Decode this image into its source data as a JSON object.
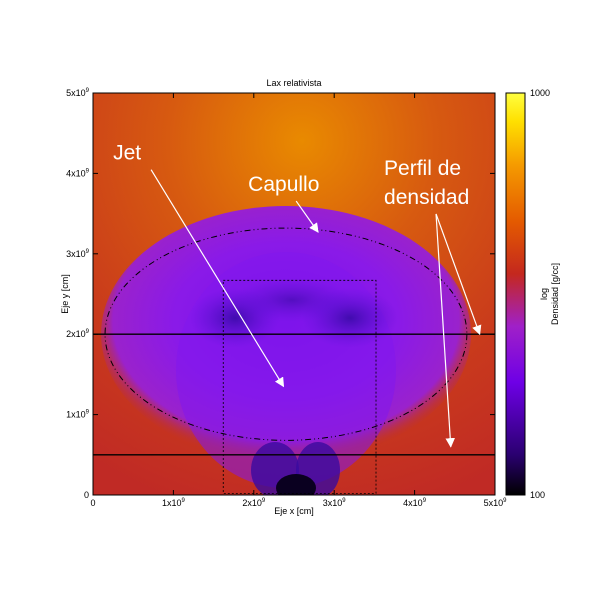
{
  "chart_data": {
    "type": "heatmap",
    "title": "Lax relativista",
    "xlabel": "Eje x [cm]",
    "ylabel": "Eje y [cm]",
    "xlim": [
      0,
      5000000000
    ],
    "ylim": [
      0,
      5000000000
    ],
    "x_ticks": [
      {
        "value": 0,
        "label": "0",
        "exp": ""
      },
      {
        "value": 1000000000,
        "label": "1x10",
        "exp": "9"
      },
      {
        "value": 2000000000,
        "label": "2x10",
        "exp": "9"
      },
      {
        "value": 3000000000,
        "label": "3x10",
        "exp": "9"
      },
      {
        "value": 4000000000,
        "label": "4x10",
        "exp": "9"
      },
      {
        "value": 5000000000,
        "label": "5x10",
        "exp": "9"
      }
    ],
    "y_ticks": [
      {
        "value": 0,
        "label": "0",
        "exp": ""
      },
      {
        "value": 1000000000,
        "label": "1x10",
        "exp": "9"
      },
      {
        "value": 2000000000,
        "label": "2x10",
        "exp": "9"
      },
      {
        "value": 3000000000,
        "label": "3x10",
        "exp": "9"
      },
      {
        "value": 4000000000,
        "label": "4x10",
        "exp": "9"
      },
      {
        "value": 5000000000,
        "label": "5x10",
        "exp": "9"
      }
    ],
    "colorbar": {
      "label_line1": "log",
      "label_line2": "Densidad [g/cc]",
      "min": 100,
      "max": 1000,
      "min_label": "100",
      "max_label": "1000",
      "colors": [
        "#000000",
        "#2a0070",
        "#6e00e6",
        "#a020c8",
        "#c4281e",
        "#e45a00",
        "#f59a00",
        "#ffe000",
        "#ffff40"
      ]
    },
    "density_profile_lines_y": [
      2000000000,
      500000000
    ],
    "cocoon_ellipse": {
      "cx": 2400000000,
      "cy": 2000000000,
      "rx": 2250000000,
      "ry": 1320000000
    },
    "inner_box": {
      "x0": 1620000000,
      "x1": 3520000000,
      "y0": 20000000,
      "y1": 2670000000
    },
    "annotations": [
      {
        "text": "Jet",
        "x": 250000000,
        "y": 4170000000,
        "arrow_to": [
          2370000000,
          1350000000
        ]
      },
      {
        "text": "Capullo",
        "x": 1930000000,
        "y": 3780000000,
        "arrow_to": [
          2800000000,
          3270000000
        ]
      },
      {
        "text": "Perfil de",
        "x": 3620000000,
        "y": 3980000000
      },
      {
        "text": "densidad",
        "x": 3620000000,
        "y": 3620000000,
        "arrow_to": [
          4810000000,
          2000000000
        ],
        "arrow_to_2": [
          4450000000,
          600000000
        ]
      }
    ]
  }
}
